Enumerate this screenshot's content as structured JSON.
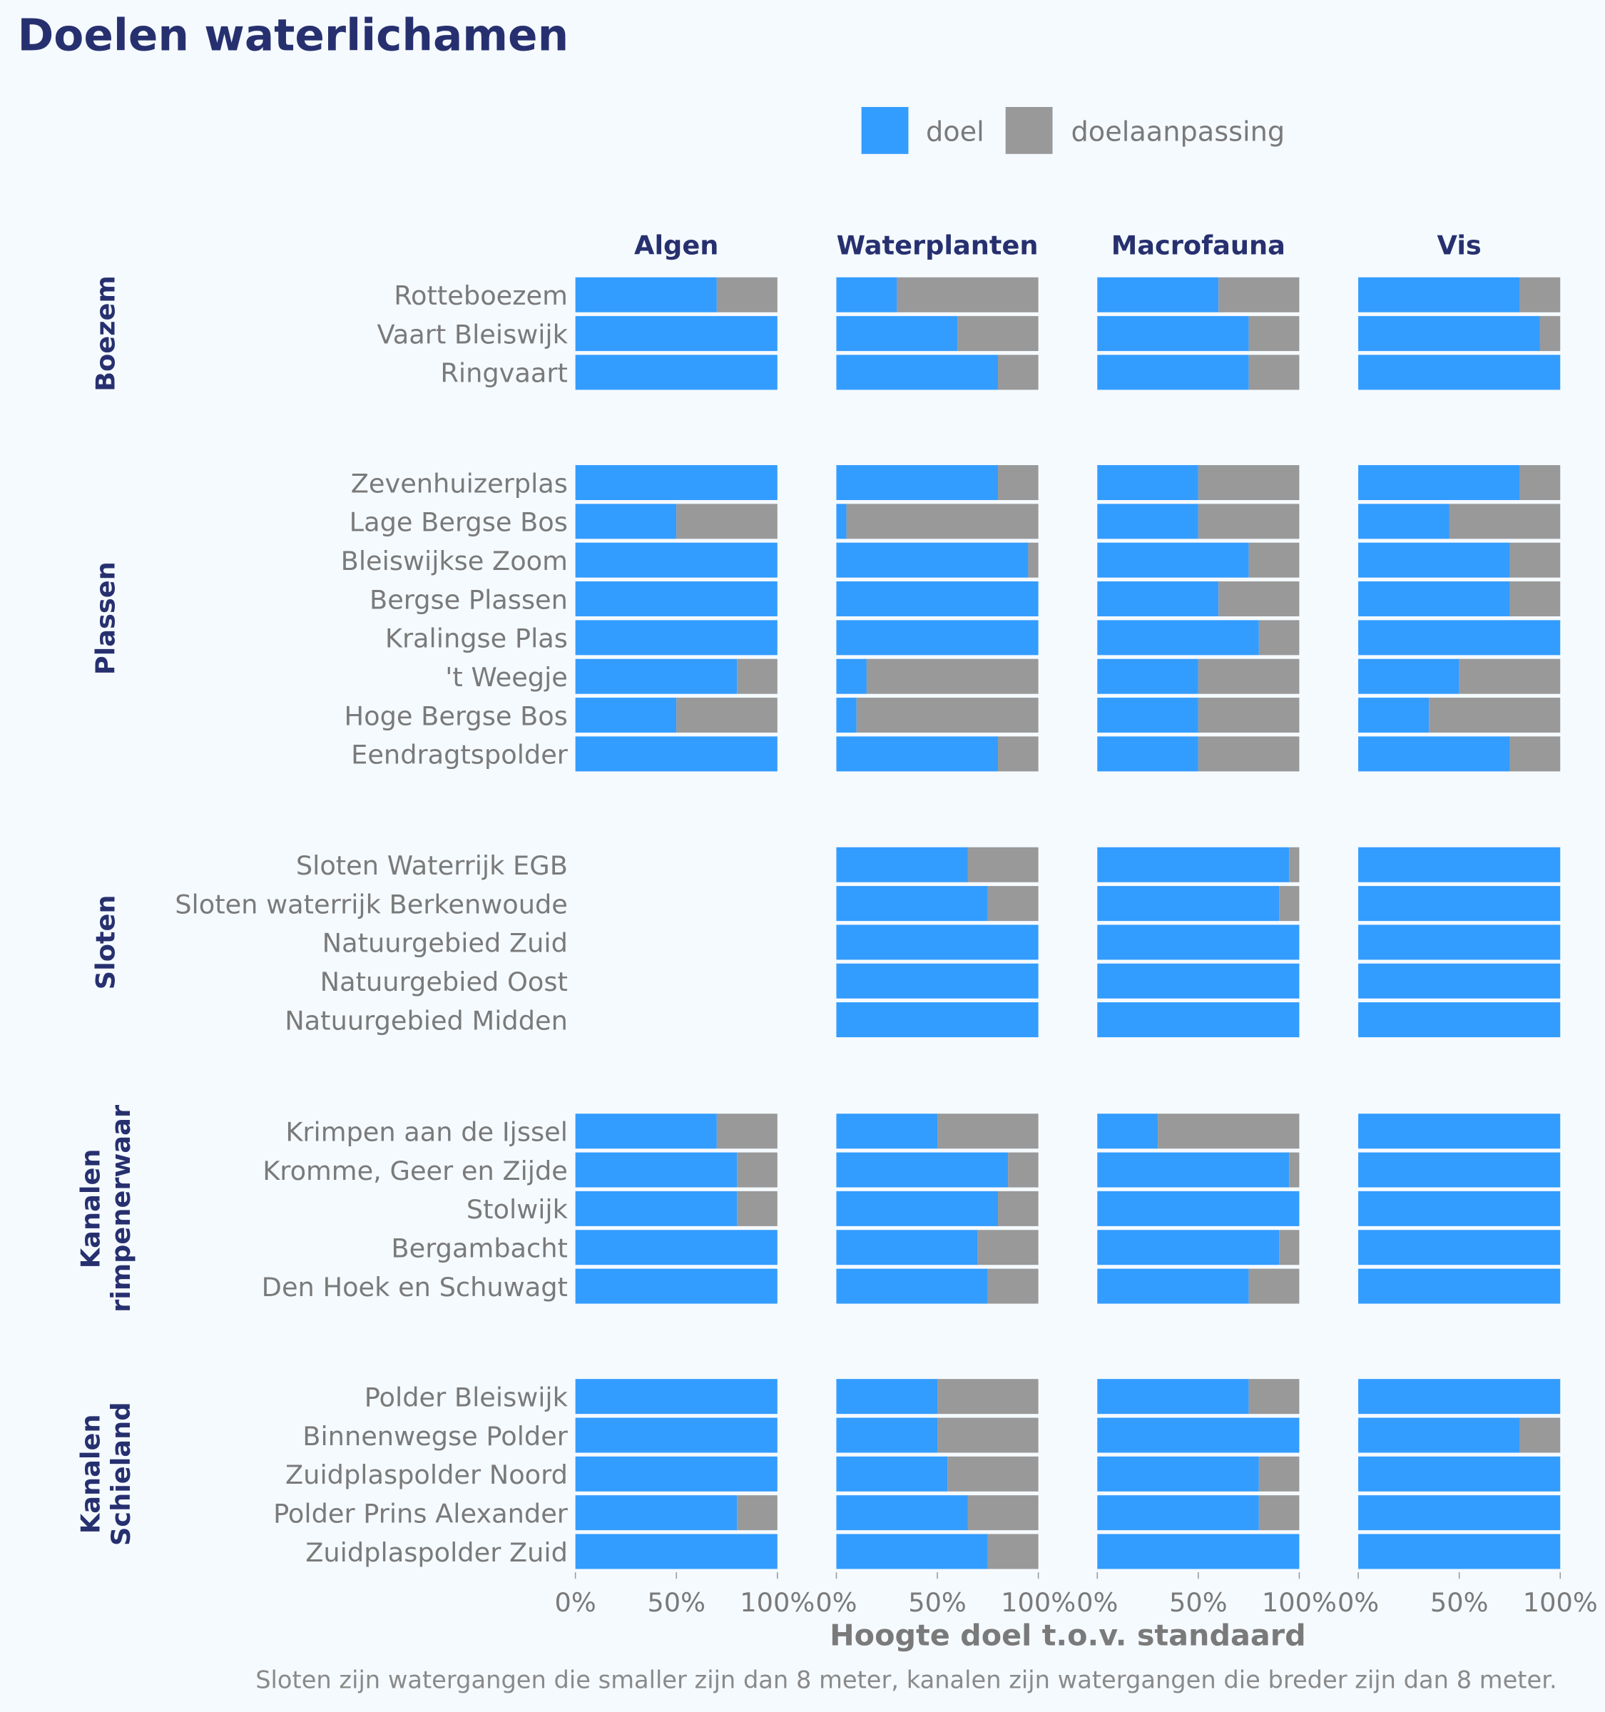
{
  "chart_data": {
    "type": "bar",
    "stacked": true,
    "orientation": "horizontal",
    "title": "Doelen waterlichamen",
    "xlabel": "Hoogte doel t.o.v. standaard",
    "caption": "Sloten zijn watergangen die smaller zijn dan 8 meter, kanalen zijn watergangen die breder zijn dan 8 meter.",
    "xlim": [
      0,
      100
    ],
    "xticks": [
      "0%",
      "50%",
      "100%"
    ],
    "legend": {
      "position": "top-right",
      "items": [
        {
          "name": "doel",
          "color": "#339cff"
        },
        {
          "name": "doelaanpassing",
          "color": "#999999"
        }
      ]
    },
    "facets": [
      "Algen",
      "Waterplanten",
      "Macrofauna",
      "Vis"
    ],
    "groups": [
      {
        "name": "Boezem",
        "label_lines": [
          "Boezem"
        ],
        "rows": [
          {
            "name": "Rotteboezem",
            "doel": [
              70,
              30,
              60,
              80
            ]
          },
          {
            "name": "Vaart Bleiswijk",
            "doel": [
              100,
              60,
              75,
              90
            ]
          },
          {
            "name": "Ringvaart",
            "doel": [
              100,
              80,
              75,
              100
            ]
          }
        ]
      },
      {
        "name": "Plassen",
        "label_lines": [
          "Plassen"
        ],
        "rows": [
          {
            "name": "Zevenhuizerplas",
            "doel": [
              100,
              80,
              50,
              80
            ]
          },
          {
            "name": "Lage Bergse Bos",
            "doel": [
              50,
              5,
              50,
              45
            ]
          },
          {
            "name": "Bleiswijkse Zoom",
            "doel": [
              100,
              95,
              75,
              75
            ]
          },
          {
            "name": "Bergse Plassen",
            "doel": [
              100,
              100,
              60,
              75
            ]
          },
          {
            "name": "Kralingse Plas",
            "doel": [
              100,
              100,
              80,
              100
            ]
          },
          {
            "name": "'t Weegje",
            "doel": [
              80,
              15,
              50,
              50
            ]
          },
          {
            "name": "Hoge Bergse Bos",
            "doel": [
              50,
              10,
              50,
              35
            ]
          },
          {
            "name": "Eendragtspolder",
            "doel": [
              100,
              80,
              50,
              75
            ]
          }
        ]
      },
      {
        "name": "Sloten",
        "label_lines": [
          "Sloten"
        ],
        "rows": [
          {
            "name": "Sloten Waterrijk EGB",
            "doel": [
              null,
              65,
              95,
              100
            ]
          },
          {
            "name": "Sloten waterrijk Berkenwoude",
            "doel": [
              null,
              75,
              90,
              100
            ]
          },
          {
            "name": "Natuurgebied Zuid",
            "doel": [
              null,
              100,
              100,
              100
            ]
          },
          {
            "name": "Natuurgebied Oost",
            "doel": [
              null,
              100,
              100,
              100
            ]
          },
          {
            "name": "Natuurgebied Midden",
            "doel": [
              null,
              100,
              100,
              100
            ]
          }
        ]
      },
      {
        "name": "Kanalen rimpenerwaar",
        "label_lines": [
          "Kanalen",
          "rimpenerwaar"
        ],
        "rows": [
          {
            "name": "Krimpen aan de Ijssel",
            "doel": [
              70,
              50,
              30,
              100
            ]
          },
          {
            "name": "Kromme, Geer en Zijde",
            "doel": [
              80,
              85,
              95,
              100
            ]
          },
          {
            "name": "Stolwijk",
            "doel": [
              80,
              80,
              100,
              100
            ]
          },
          {
            "name": "Bergambacht",
            "doel": [
              100,
              70,
              90,
              100
            ]
          },
          {
            "name": "Den Hoek en Schuwagt",
            "doel": [
              100,
              75,
              75,
              100
            ]
          }
        ]
      },
      {
        "name": "Kanalen Schieland",
        "label_lines": [
          "Kanalen",
          "Schieland"
        ],
        "rows": [
          {
            "name": "Polder Bleiswijk",
            "doel": [
              100,
              50,
              75,
              100
            ]
          },
          {
            "name": "Binnenwegse Polder",
            "doel": [
              100,
              50,
              100,
              80
            ]
          },
          {
            "name": "Zuidplaspolder Noord",
            "doel": [
              100,
              55,
              80,
              100
            ]
          },
          {
            "name": "Polder Prins Alexander",
            "doel": [
              80,
              65,
              80,
              100
            ]
          },
          {
            "name": "Zuidplaspolder Zuid",
            "doel": [
              100,
              75,
              100,
              100
            ]
          }
        ]
      }
    ]
  }
}
